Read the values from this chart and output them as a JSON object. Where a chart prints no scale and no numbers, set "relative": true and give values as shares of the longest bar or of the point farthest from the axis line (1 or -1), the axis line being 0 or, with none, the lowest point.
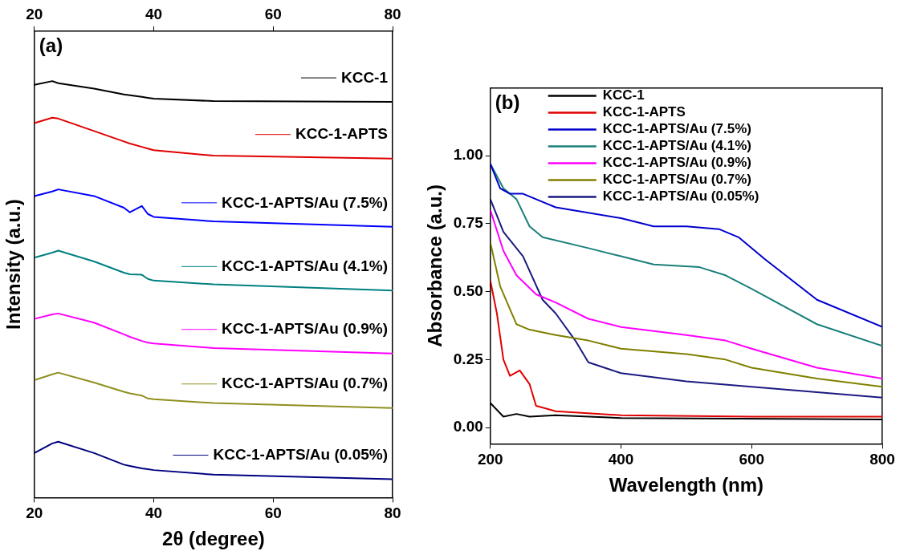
{
  "chart_data": [
    {
      "type": "line",
      "xlabel": "2θ (degree)",
      "ylabel": "Intensity (a.u.)",
      "annotations": [
        "(a)"
      ],
      "relative": true,
      "tick_labels": "x",
      "xlim": [
        20,
        80
      ],
      "xticks": [
        20,
        40,
        60,
        80
      ],
      "x2lim": [
        20,
        80
      ],
      "x2ticks": [
        20,
        40,
        60,
        80
      ],
      "legend": "right",
      "grid": false,
      "marker": "none",
      "x": [
        20,
        23,
        24,
        30,
        35,
        36,
        38,
        39,
        40,
        50,
        80
      ],
      "series": [
        {
          "name": "KCC-1",
          "color": "#000000",
          "values": [
            0.991,
            1,
            0.995,
            0.982,
            0.968,
            0.966,
            0.962,
            0.96,
            0.958,
            0.952,
            0.95
          ]
        },
        {
          "name": "KCC-1-APTS",
          "color": "#e00000",
          "values": [
            0.899,
            0.912,
            0.91,
            0.88,
            0.855,
            0.85,
            0.842,
            0.838,
            0.834,
            0.821,
            0.814
          ]
        },
        {
          "name": "KCC-1-APTS/Au (7.5%)",
          "color": "#0000ff",
          "values": [
            0.724,
            0.735,
            0.74,
            0.724,
            0.696,
            0.685,
            0.7,
            0.681,
            0.674,
            0.663,
            0.65
          ]
        },
        {
          "name": "KCC-1-APTS/Au (4.1%)",
          "color": "#008080",
          "values": [
            0.576,
            0.588,
            0.593,
            0.567,
            0.54,
            0.536,
            0.535,
            0.525,
            0.521,
            0.512,
            0.497
          ]
        },
        {
          "name": "KCC-1-APTS/Au (0.9%)",
          "color": "#ff00ff",
          "values": [
            0.429,
            0.44,
            0.442,
            0.42,
            0.392,
            0.386,
            0.376,
            0.372,
            0.37,
            0.359,
            0.346
          ]
        },
        {
          "name": "KCC-1-APTS/Au (0.7%)",
          "color": "#8f8f1f",
          "values": [
            0.282,
            0.296,
            0.3,
            0.276,
            0.254,
            0.25,
            0.245,
            0.238,
            0.236,
            0.227,
            0.215
          ]
        },
        {
          "name": "KCC-1-APTS/Au (0.05%)",
          "color": "#000080",
          "values": [
            0.107,
            0.13,
            0.134,
            0.107,
            0.079,
            0.076,
            0.07,
            0.068,
            0.066,
            0.055,
            0.044
          ]
        }
      ]
    },
    {
      "type": "line",
      "xlabel": "Wavelength (nm)",
      "ylabel": "Absorbance (a.u.)",
      "annotations": [
        "(b)"
      ],
      "xlim": [
        200,
        800
      ],
      "xticks": [
        200,
        400,
        600,
        800
      ],
      "ylim": [
        -0.06,
        1.25
      ],
      "yticks": [
        {
          "value": 0,
          "label": "0.00"
        },
        {
          "value": 0.25,
          "label": "0.25"
        },
        {
          "value": 0.5,
          "label": "0.50"
        },
        {
          "value": 0.75,
          "label": "0.75"
        },
        {
          "value": 1,
          "label": "1.00"
        }
      ],
      "legend": "top left",
      "grid": false,
      "marker": "none",
      "series": [
        {
          "name": "KCC-1",
          "color": "#000000",
          "x": [
            200,
            220,
            240,
            260,
            300,
            400,
            800
          ],
          "values": [
            0.09,
            0.04,
            0.05,
            0.04,
            0.045,
            0.035,
            0.03
          ]
        },
        {
          "name": "KCC-1-APTS",
          "color": "#e00000",
          "x": [
            200,
            210,
            220,
            230,
            245,
            260,
            270,
            300,
            400,
            600,
            800
          ],
          "values": [
            0.54,
            0.42,
            0.25,
            0.19,
            0.21,
            0.16,
            0.08,
            0.06,
            0.045,
            0.04,
            0.04
          ]
        },
        {
          "name": "KCC-1-APTS/Au (7.5%)",
          "color": "#0000cc",
          "x": [
            200,
            215,
            230,
            250,
            300,
            400,
            450,
            500,
            550,
            580,
            620,
            700,
            800
          ],
          "values": [
            0.97,
            0.88,
            0.86,
            0.86,
            0.81,
            0.77,
            0.74,
            0.74,
            0.73,
            0.7,
            0.62,
            0.47,
            0.37
          ]
        },
        {
          "name": "KCC-1-APTS/Au (4.1%)",
          "color": "#1a7f7a",
          "x": [
            200,
            220,
            240,
            260,
            280,
            350,
            400,
            450,
            520,
            560,
            600,
            700,
            800
          ],
          "values": [
            0.97,
            0.88,
            0.84,
            0.74,
            0.7,
            0.66,
            0.63,
            0.6,
            0.59,
            0.56,
            0.51,
            0.38,
            0.3
          ]
        },
        {
          "name": "KCC-1-APTS/Au (0.9%)",
          "color": "#ff00ff",
          "x": [
            200,
            220,
            240,
            270,
            300,
            350,
            400,
            500,
            560,
            600,
            700,
            800
          ],
          "values": [
            0.8,
            0.65,
            0.56,
            0.49,
            0.46,
            0.4,
            0.37,
            0.34,
            0.32,
            0.29,
            0.22,
            0.18
          ]
        },
        {
          "name": "KCC-1-APTS/Au (0.7%)",
          "color": "#808000",
          "x": [
            200,
            215,
            240,
            260,
            300,
            350,
            400,
            500,
            560,
            600,
            700,
            800
          ],
          "values": [
            0.68,
            0.52,
            0.38,
            0.36,
            0.34,
            0.32,
            0.29,
            0.27,
            0.25,
            0.22,
            0.18,
            0.15
          ]
        },
        {
          "name": "KCC-1-APTS/Au (0.05%)",
          "color": "#1a1a80",
          "x": [
            200,
            220,
            250,
            280,
            300,
            330,
            350,
            400,
            500,
            600,
            700,
            800
          ],
          "values": [
            0.84,
            0.72,
            0.63,
            0.47,
            0.42,
            0.32,
            0.24,
            0.2,
            0.17,
            0.15,
            0.13,
            0.11
          ]
        }
      ]
    }
  ]
}
